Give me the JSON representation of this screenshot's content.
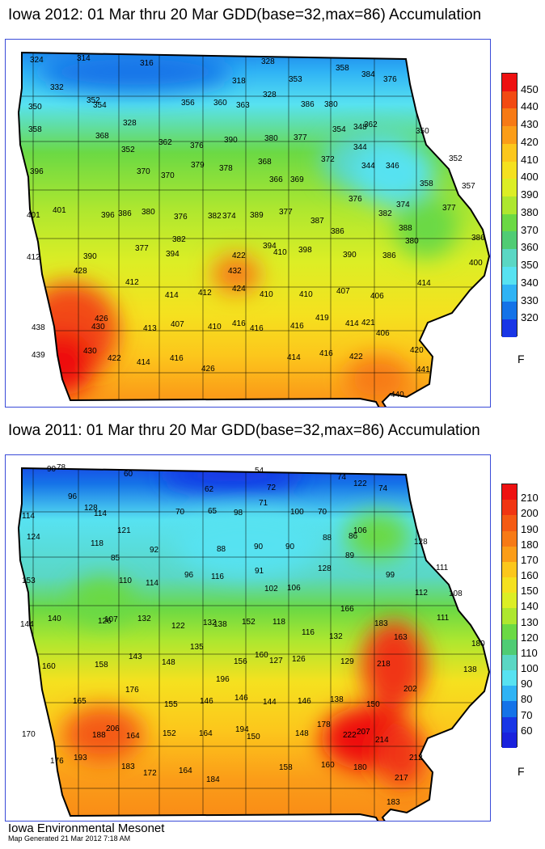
{
  "panels": [
    {
      "title": "Iowa 2012: 01 Mar thru 20 Mar GDD(base=32,max=86) Accumulation",
      "legend_ticks": [
        "450",
        "440",
        "430",
        "420",
        "410",
        "400",
        "390",
        "380",
        "370",
        "360",
        "350",
        "340",
        "330",
        "320"
      ],
      "legend_colors": [
        "#ee1111",
        "#f24a12",
        "#f77a15",
        "#fb9d18",
        "#fcc71c",
        "#f5e11f",
        "#dcee25",
        "#aee72f",
        "#6bd944",
        "#50cc74",
        "#5ad7c4",
        "#57e2f1",
        "#2fb3f5",
        "#1573e8",
        "#1936e6"
      ],
      "unit": "F",
      "labels": [
        {
          "t": "324"
        },
        {
          "t": "314"
        },
        {
          "t": "316"
        },
        {
          "t": "328"
        },
        {
          "t": "318"
        },
        {
          "t": "353"
        },
        {
          "t": "358"
        },
        {
          "t": "384"
        },
        {
          "t": "376"
        },
        {
          "t": "332"
        },
        {
          "t": "328"
        },
        {
          "t": "352"
        },
        {
          "t": "354"
        },
        {
          "t": "356"
        },
        {
          "t": "360"
        },
        {
          "t": "363"
        },
        {
          "t": "386"
        },
        {
          "t": "380"
        },
        {
          "t": "350"
        },
        {
          "t": "358"
        },
        {
          "t": "368"
        },
        {
          "t": "328"
        },
        {
          "t": "352"
        },
        {
          "t": "362"
        },
        {
          "t": "376"
        },
        {
          "t": "390"
        },
        {
          "t": "380"
        },
        {
          "t": "377"
        },
        {
          "t": "354"
        },
        {
          "t": "348"
        },
        {
          "t": "362"
        },
        {
          "t": "350"
        },
        {
          "t": "344"
        },
        {
          "t": "352"
        },
        {
          "t": "396"
        },
        {
          "t": "370"
        },
        {
          "t": "370"
        },
        {
          "t": "379"
        },
        {
          "t": "378"
        },
        {
          "t": "368"
        },
        {
          "t": "372"
        },
        {
          "t": "344"
        },
        {
          "t": "346"
        },
        {
          "t": "366"
        },
        {
          "t": "369"
        },
        {
          "t": "358"
        },
        {
          "t": "357"
        },
        {
          "t": "401"
        },
        {
          "t": "401"
        },
        {
          "t": "396"
        },
        {
          "t": "386"
        },
        {
          "t": "380"
        },
        {
          "t": "376"
        },
        {
          "t": "382"
        },
        {
          "t": "374"
        },
        {
          "t": "389"
        },
        {
          "t": "377"
        },
        {
          "t": "387"
        },
        {
          "t": "376"
        },
        {
          "t": "382"
        },
        {
          "t": "374"
        },
        {
          "t": "377"
        },
        {
          "t": "382"
        },
        {
          "t": "386"
        },
        {
          "t": "388"
        },
        {
          "t": "380"
        },
        {
          "t": "386"
        },
        {
          "t": "412"
        },
        {
          "t": "390"
        },
        {
          "t": "377"
        },
        {
          "t": "394"
        },
        {
          "t": "422"
        },
        {
          "t": "394"
        },
        {
          "t": "410"
        },
        {
          "t": "398"
        },
        {
          "t": "390"
        },
        {
          "t": "386"
        },
        {
          "t": "400"
        },
        {
          "t": "432"
        },
        {
          "t": "412"
        },
        {
          "t": "428"
        },
        {
          "t": "424"
        },
        {
          "t": "414"
        },
        {
          "t": "412"
        },
        {
          "t": "410"
        },
        {
          "t": "410"
        },
        {
          "t": "407"
        },
        {
          "t": "406"
        },
        {
          "t": "414"
        },
        {
          "t": "426"
        },
        {
          "t": "438"
        },
        {
          "t": "430"
        },
        {
          "t": "413"
        },
        {
          "t": "407"
        },
        {
          "t": "410"
        },
        {
          "t": "416"
        },
        {
          "t": "416"
        },
        {
          "t": "416"
        },
        {
          "t": "419"
        },
        {
          "t": "414"
        },
        {
          "t": "421"
        },
        {
          "t": "406"
        },
        {
          "t": "439"
        },
        {
          "t": "430"
        },
        {
          "t": "422"
        },
        {
          "t": "414"
        },
        {
          "t": "416"
        },
        {
          "t": "426"
        },
        {
          "t": "414"
        },
        {
          "t": "416"
        },
        {
          "t": "422"
        },
        {
          "t": "420"
        },
        {
          "t": "441"
        },
        {
          "t": "440"
        }
      ]
    },
    {
      "title": "Iowa 2011: 01 Mar thru 20 Mar GDD(base=32,max=86) Accumulation",
      "legend_ticks": [
        "210",
        "200",
        "190",
        "180",
        "170",
        "160",
        "150",
        "140",
        "130",
        "120",
        "110",
        "100",
        "90",
        "80",
        "70",
        "60"
      ],
      "legend_colors": [
        "#ee1111",
        "#f03512",
        "#f45a13",
        "#f77a15",
        "#fb9d18",
        "#fcc71c",
        "#f5e11f",
        "#dcee25",
        "#aee72f",
        "#6bd944",
        "#50cc74",
        "#5ad7c4",
        "#57e2f1",
        "#2fb3f5",
        "#1573e8",
        "#1936e6",
        "#1a22dd"
      ],
      "unit": "F",
      "labels": [
        {
          "t": "90"
        },
        {
          "t": "78"
        },
        {
          "t": "60"
        },
        {
          "t": "54"
        },
        {
          "t": "62"
        },
        {
          "t": "72"
        },
        {
          "t": "74"
        },
        {
          "t": "122"
        },
        {
          "t": "74"
        },
        {
          "t": "96"
        },
        {
          "t": "128"
        },
        {
          "t": "114"
        },
        {
          "t": "70"
        },
        {
          "t": "65"
        },
        {
          "t": "98"
        },
        {
          "t": "71"
        },
        {
          "t": "100"
        },
        {
          "t": "70"
        },
        {
          "t": "114"
        },
        {
          "t": "124"
        },
        {
          "t": "121"
        },
        {
          "t": "118"
        },
        {
          "t": "92"
        },
        {
          "t": "88"
        },
        {
          "t": "90"
        },
        {
          "t": "90"
        },
        {
          "t": "88"
        },
        {
          "t": "86"
        },
        {
          "t": "106"
        },
        {
          "t": "128"
        },
        {
          "t": "85"
        },
        {
          "t": "89"
        },
        {
          "t": "111"
        },
        {
          "t": "153"
        },
        {
          "t": "110"
        },
        {
          "t": "114"
        },
        {
          "t": "96"
        },
        {
          "t": "116"
        },
        {
          "t": "91"
        },
        {
          "t": "102"
        },
        {
          "t": "106"
        },
        {
          "t": "128"
        },
        {
          "t": "99"
        },
        {
          "t": "112"
        },
        {
          "t": "108"
        },
        {
          "t": "144"
        },
        {
          "t": "140"
        },
        {
          "t": "126"
        },
        {
          "t": "107"
        },
        {
          "t": "132"
        },
        {
          "t": "122"
        },
        {
          "t": "132"
        },
        {
          "t": "138"
        },
        {
          "t": "152"
        },
        {
          "t": "118"
        },
        {
          "t": "116"
        },
        {
          "t": "166"
        },
        {
          "t": "183"
        },
        {
          "t": "111"
        },
        {
          "t": "163"
        },
        {
          "t": "135"
        },
        {
          "t": "132"
        },
        {
          "t": "180"
        },
        {
          "t": "160"
        },
        {
          "t": "158"
        },
        {
          "t": "143"
        },
        {
          "t": "148"
        },
        {
          "t": "156"
        },
        {
          "t": "160"
        },
        {
          "t": "127"
        },
        {
          "t": "126"
        },
        {
          "t": "129"
        },
        {
          "t": "218"
        },
        {
          "t": "138"
        },
        {
          "t": "196"
        },
        {
          "t": "176"
        },
        {
          "t": "202"
        },
        {
          "t": "165"
        },
        {
          "t": "155"
        },
        {
          "t": "146"
        },
        {
          "t": "146"
        },
        {
          "t": "144"
        },
        {
          "t": "146"
        },
        {
          "t": "138"
        },
        {
          "t": "150"
        },
        {
          "t": "206"
        },
        {
          "t": "178"
        },
        {
          "t": "170"
        },
        {
          "t": "188"
        },
        {
          "t": "164"
        },
        {
          "t": "152"
        },
        {
          "t": "164"
        },
        {
          "t": "194"
        },
        {
          "t": "150"
        },
        {
          "t": "148"
        },
        {
          "t": "222"
        },
        {
          "t": "207"
        },
        {
          "t": "214"
        },
        {
          "t": "212"
        },
        {
          "t": "176"
        },
        {
          "t": "193"
        },
        {
          "t": "183"
        },
        {
          "t": "172"
        },
        {
          "t": "164"
        },
        {
          "t": "184"
        },
        {
          "t": "158"
        },
        {
          "t": "160"
        },
        {
          "t": "180"
        },
        {
          "t": "217"
        },
        {
          "t": "183"
        }
      ]
    }
  ],
  "footer": {
    "title": "Iowa Environmental Mesonet",
    "subtitle": "Map Generated 21 Mar 2012 7:18 AM"
  }
}
